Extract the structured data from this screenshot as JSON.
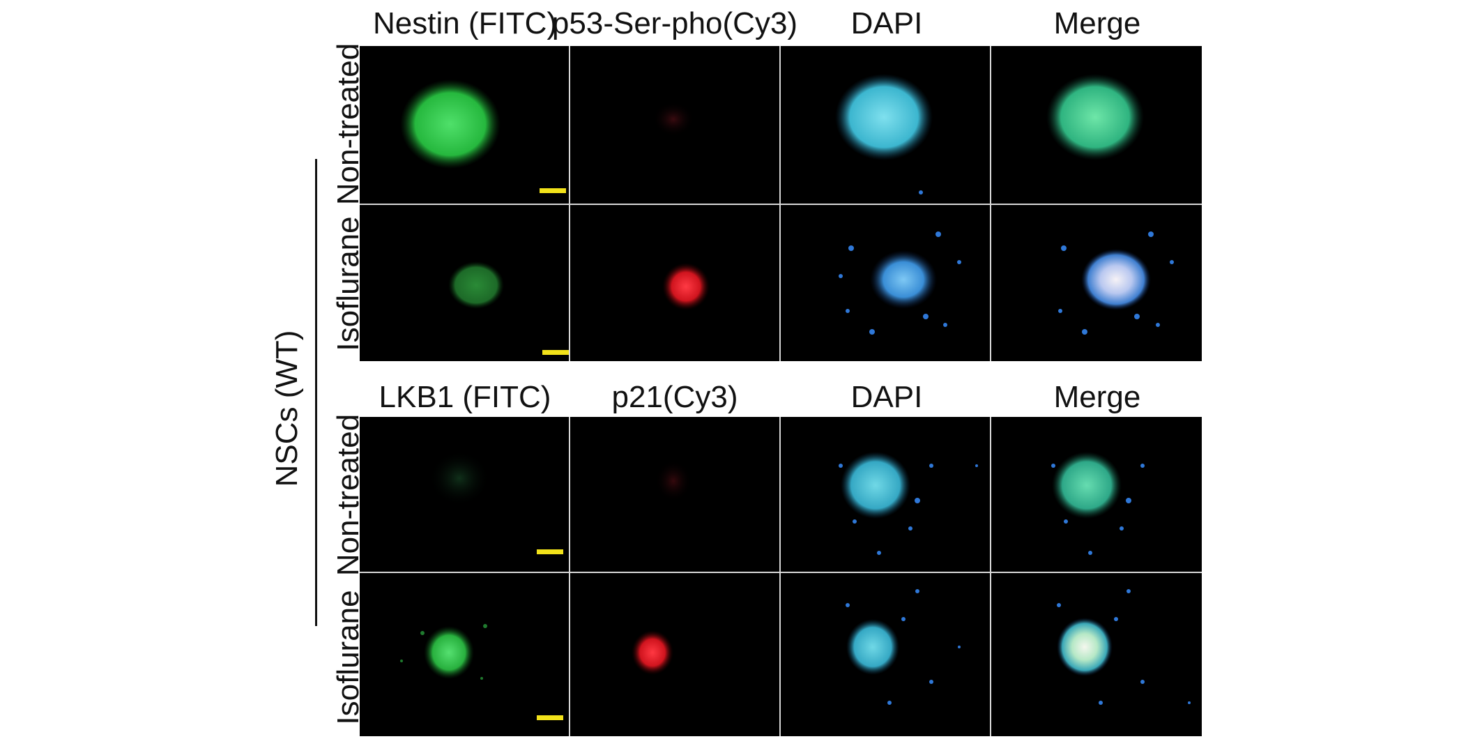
{
  "figure": {
    "group_label": "NSCs (WT)",
    "top_block": {
      "columns": [
        "Nestin (FITC)",
        "p53-Ser-pho(Cy3)",
        "DAPI",
        "Merge"
      ],
      "rows": [
        "Non-treated",
        "Isoflurane"
      ]
    },
    "bottom_block": {
      "columns": [
        "LKB1 (FITC)",
        "p21(Cy3)",
        "DAPI",
        "Merge"
      ],
      "rows": [
        "Non-treated",
        "Isoflurane"
      ]
    },
    "colors": {
      "background": "#000000",
      "fitc": "#2fb84a",
      "cy3": "#e0202a",
      "dapi": "#3fa8e0",
      "scale_bar": "#f2e21a"
    }
  }
}
